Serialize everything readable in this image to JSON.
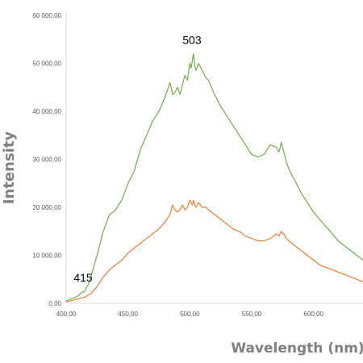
{
  "chart_data": {
    "type": "line",
    "title": "",
    "xlabel": "Wavelength (nm)",
    "ylabel": "Intensity",
    "xlim": [
      400,
      640
    ],
    "ylim": [
      0,
      60000
    ],
    "x_ticks": [
      400,
      450,
      500,
      550,
      600
    ],
    "x_tick_labels": [
      "400,00",
      "450,00",
      "500,00",
      "550,00",
      "600,00"
    ],
    "y_ticks": [
      0,
      10000,
      20000,
      30000,
      40000,
      50000,
      60000
    ],
    "y_tick_labels": [
      "0,00",
      "10 000,00",
      "20 000,00",
      "30 000,00",
      "40 000,00",
      "50 000,00",
      "60 000,00"
    ],
    "grid": false,
    "legend": "none",
    "annotations": [
      {
        "text": "415",
        "x": 415,
        "y": 2500
      },
      {
        "text": "503",
        "x": 503,
        "y": 52000
      }
    ],
    "series": [
      {
        "color": "#70ad47",
        "x": [
          400,
          405,
          410,
          412,
          415,
          418,
          420,
          425,
          430,
          435,
          438,
          440,
          445,
          450,
          455,
          460,
          465,
          470,
          475,
          480,
          484,
          486,
          488,
          490,
          492,
          494,
          496,
          498,
          500,
          501,
          502,
          503,
          504,
          505,
          507,
          510,
          513,
          515,
          520,
          525,
          530,
          535,
          540,
          545,
          550,
          555,
          560,
          565,
          570,
          572,
          574,
          575,
          576,
          578,
          580,
          585,
          590,
          595,
          600,
          605,
          610,
          615,
          620,
          625,
          630,
          635,
          640
        ],
        "y": [
          500,
          1000,
          1600,
          2200,
          2500,
          4000,
          5500,
          10000,
          15000,
          18500,
          19000,
          19500,
          21500,
          25000,
          27500,
          32000,
          35000,
          38000,
          40000,
          43000,
          46000,
          43500,
          44000,
          45000,
          43500,
          45500,
          47500,
          46500,
          50000,
          49000,
          50500,
          52000,
          49500,
          48500,
          50000,
          48500,
          47000,
          46500,
          43500,
          41000,
          39000,
          37000,
          35000,
          33000,
          31000,
          30500,
          31000,
          33000,
          32500,
          31500,
          33500,
          32500,
          31500,
          29500,
          28000,
          25500,
          23000,
          21000,
          19000,
          17500,
          16000,
          14500,
          13000,
          12000,
          11000,
          10000,
          9000
        ]
      },
      {
        "color": "#ed7d31",
        "x": [
          400,
          405,
          410,
          415,
          420,
          425,
          430,
          435,
          440,
          445,
          450,
          455,
          460,
          465,
          470,
          475,
          480,
          484,
          486,
          488,
          490,
          492,
          494,
          496,
          498,
          500,
          501,
          502,
          503,
          504,
          505,
          507,
          510,
          513,
          515,
          520,
          525,
          530,
          535,
          540,
          545,
          550,
          555,
          560,
          565,
          570,
          572,
          574,
          575,
          576,
          578,
          580,
          585,
          590,
          595,
          600,
          605,
          610,
          615,
          620,
          625,
          630,
          635,
          640
        ],
        "y": [
          300,
          600,
          900,
          1300,
          2000,
          3500,
          5500,
          7000,
          8000,
          9000,
          10500,
          11500,
          12500,
          13500,
          14500,
          15500,
          17000,
          18500,
          20500,
          19500,
          19000,
          19500,
          20500,
          19500,
          20000,
          21500,
          21000,
          20500,
          21500,
          20500,
          20000,
          21000,
          20000,
          20000,
          19500,
          18500,
          17500,
          16500,
          15500,
          15000,
          14000,
          13500,
          13000,
          13000,
          13500,
          14500,
          14000,
          15000,
          14500,
          14500,
          13500,
          13000,
          12000,
          11000,
          10000,
          9000,
          8000,
          7500,
          7000,
          6500,
          6000,
          5500,
          5000,
          4500
        ]
      }
    ]
  }
}
